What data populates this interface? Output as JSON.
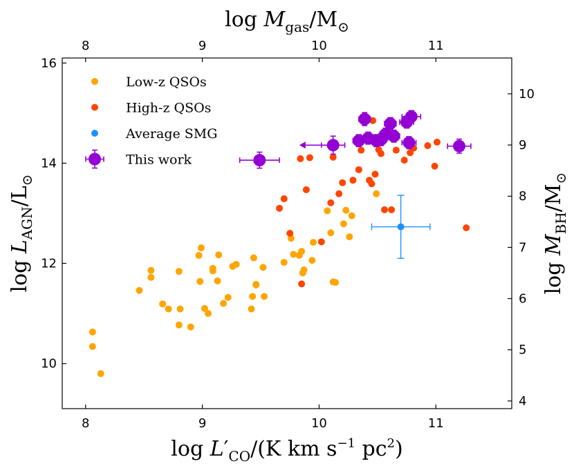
{
  "chart_data": {
    "type": "scatter",
    "xlabel": "log L′_CO/(K km s^−1 pc^2)",
    "ylabel": "log L_AGN/L_⊙",
    "top_xlabel": "log M_gas/M_⊙",
    "right_ylabel": "log M_BH/M_⊙",
    "xlim": [
      7.8,
      11.65
    ],
    "ylim": [
      9.1,
      16.1
    ],
    "x_ticks": [
      8,
      9,
      10,
      11
    ],
    "y_ticks": [
      10,
      12,
      14,
      16
    ],
    "top_xlim": [
      7.8,
      11.65
    ],
    "top_x_ticks": [
      8,
      9,
      10,
      11
    ],
    "right_ylim": [
      3.85,
      10.7
    ],
    "right_y_ticks": [
      4,
      5,
      6,
      7,
      8,
      9,
      10
    ],
    "legend_position": "upper-left",
    "series": [
      {
        "name": "Low-z QSOs",
        "color": "#ffa500",
        "marker": "small-circle",
        "points": [
          [
            8.06,
            10.63
          ],
          [
            8.06,
            10.34
          ],
          [
            8.13,
            9.8
          ],
          [
            8.46,
            11.46
          ],
          [
            8.56,
            11.86
          ],
          [
            8.56,
            11.72
          ],
          [
            8.66,
            11.19
          ],
          [
            8.71,
            11.09
          ],
          [
            8.8,
            10.77
          ],
          [
            8.81,
            11.09
          ],
          [
            8.8,
            11.84
          ],
          [
            8.9,
            10.73
          ],
          [
            8.97,
            12.16
          ],
          [
            8.98,
            11.64
          ],
          [
            8.99,
            12.31
          ],
          [
            9.02,
            11.1
          ],
          [
            9.05,
            11.0
          ],
          [
            9.09,
            11.85
          ],
          [
            9.09,
            11.9
          ],
          [
            9.14,
            12.17
          ],
          [
            9.13,
            11.65
          ],
          [
            9.18,
            11.2
          ],
          [
            9.22,
            11.32
          ],
          [
            9.26,
            11.94
          ],
          [
            9.29,
            11.98
          ],
          [
            9.42,
            11.09
          ],
          [
            9.44,
            12.11
          ],
          [
            9.43,
            11.34
          ],
          [
            9.46,
            11.57
          ],
          [
            9.46,
            11.58
          ],
          [
            9.52,
            11.92
          ],
          [
            9.53,
            11.34
          ],
          [
            9.7,
            12.02
          ],
          [
            9.76,
            12.5
          ],
          [
            9.78,
            12.18
          ],
          [
            9.83,
            12.16
          ],
          [
            9.85,
            12.24
          ],
          [
            9.86,
            11.81
          ],
          [
            9.87,
            11.87
          ],
          [
            9.94,
            12.06
          ],
          [
            9.95,
            12.42
          ],
          [
            10.07,
            13.05
          ],
          [
            10.1,
            12.61
          ],
          [
            10.14,
            11.62
          ],
          [
            10.12,
            11.63
          ],
          [
            10.21,
            12.79
          ],
          [
            10.23,
            13.06
          ],
          [
            10.26,
            12.53
          ],
          [
            10.28,
            12.95
          ],
          [
            10.49,
            13.39
          ]
        ]
      },
      {
        "name": "High-z QSOs",
        "color": "#ff4500",
        "marker": "small-circle",
        "points": [
          [
            9.66,
            13.1
          ],
          [
            9.7,
            13.29
          ],
          [
            9.75,
            12.6
          ],
          [
            9.84,
            14.09
          ],
          [
            9.85,
            11.59
          ],
          [
            9.89,
            13.47
          ],
          [
            9.92,
            14.11
          ],
          [
            10.02,
            12.43
          ],
          [
            10.1,
            13.21
          ],
          [
            10.12,
            14.12
          ],
          [
            10.17,
            13.39
          ],
          [
            10.2,
            13.61
          ],
          [
            10.29,
            13.66
          ],
          [
            10.34,
            13.87
          ],
          [
            10.34,
            14.5
          ],
          [
            10.36,
            14.26
          ],
          [
            10.43,
            13.66
          ],
          [
            10.45,
            13.59
          ],
          [
            10.46,
            14.85
          ],
          [
            10.48,
            13.78
          ],
          [
            10.51,
            14.27
          ],
          [
            10.53,
            14.19
          ],
          [
            10.56,
            13.07
          ],
          [
            10.62,
            13.07
          ],
          [
            10.66,
            14.26
          ],
          [
            10.73,
            14.06
          ],
          [
            10.78,
            14.21
          ],
          [
            10.81,
            14.3
          ],
          [
            10.93,
            14.35
          ],
          [
            10.99,
            13.94
          ],
          [
            11.01,
            14.42
          ],
          [
            11.26,
            12.71
          ]
        ]
      },
      {
        "name": "Average SMG",
        "color": "#1e90ff",
        "marker": "small-circle-errorbar",
        "points": [
          [
            10.7,
            12.73
          ]
        ],
        "xerr": [
          0.25
        ],
        "yerr": [
          0.63
        ]
      },
      {
        "name": "This work",
        "color": "#9400d3",
        "marker": "large-circle-errorbar",
        "points": [
          [
            9.49,
            14.06
          ],
          [
            10.12,
            14.36
          ],
          [
            10.34,
            14.45
          ],
          [
            10.39,
            14.88
          ],
          [
            10.42,
            14.5
          ],
          [
            10.49,
            14.45
          ],
          [
            10.53,
            14.47
          ],
          [
            10.57,
            14.58
          ],
          [
            10.61,
            14.79
          ],
          [
            10.64,
            14.54
          ],
          [
            10.75,
            14.82
          ],
          [
            10.77,
            14.41
          ],
          [
            10.79,
            14.93
          ],
          [
            11.2,
            14.34
          ]
        ],
        "xerr": [
          0.17,
          0.1,
          0.05,
          0.05,
          0.05,
          0.05,
          0.05,
          0.05,
          0.05,
          0.05,
          0.06,
          0.06,
          0.08,
          0.1
        ],
        "yerr": [
          0.16,
          0.18,
          0.12,
          0.13,
          0.12,
          0.12,
          0.12,
          0.12,
          0.12,
          0.12,
          0.12,
          0.12,
          0.12,
          0.14
        ],
        "upper_limit_x_index": 1
      }
    ]
  }
}
